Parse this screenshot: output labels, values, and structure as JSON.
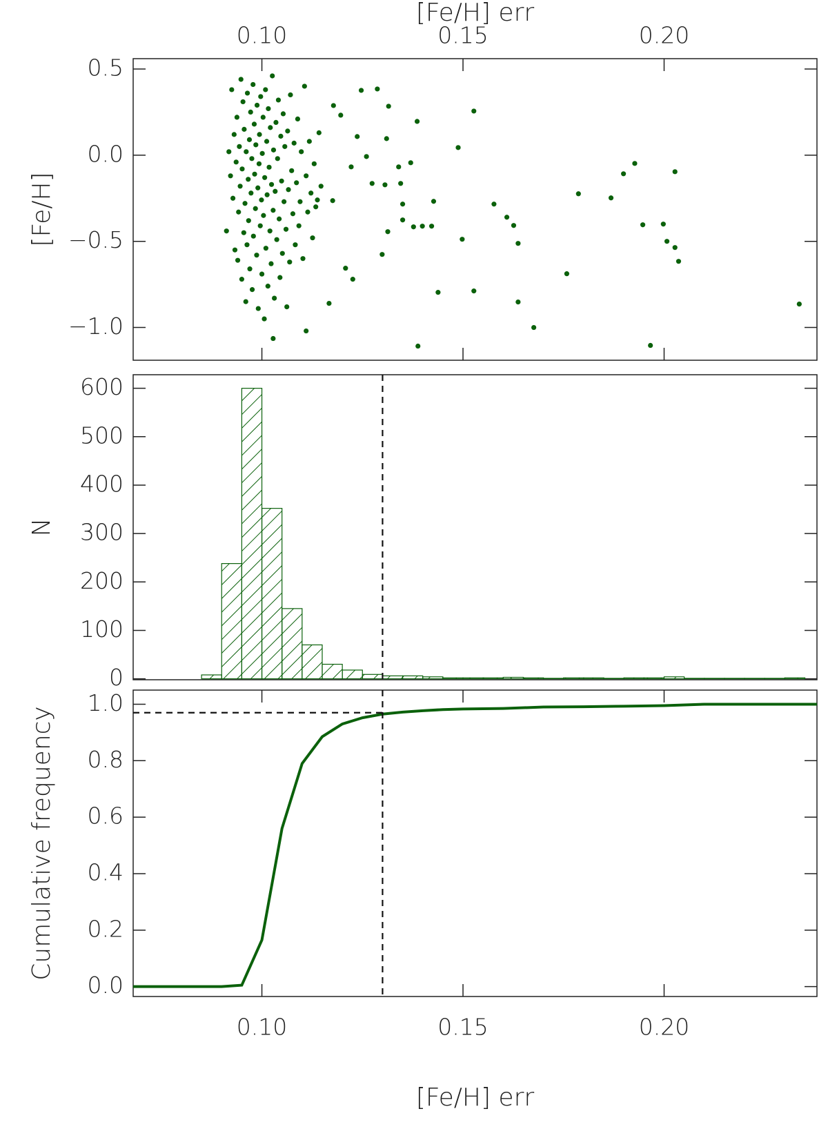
{
  "chart_data": [
    {
      "type": "scatter",
      "xlabel": "[Fe/H] err",
      "ylabel": "[Fe/H]",
      "xaxis": "top",
      "color": "#0b610b",
      "xlim": [
        0.068,
        0.238
      ],
      "xticks": [
        {
          "value": 0.1,
          "label": "0.10"
        },
        {
          "value": 0.15,
          "label": "0.15"
        },
        {
          "value": 0.2,
          "label": "0.20"
        }
      ],
      "ylim": [
        -1.19,
        0.56
      ],
      "yticks": [
        {
          "value": 0.5,
          "label": "0.5"
        },
        {
          "value": 0,
          "label": "0.0"
        },
        {
          "value": -0.5,
          "label": "−0.5"
        },
        {
          "value": -1,
          "label": "−1.0"
        }
      ],
      "x": [
        0.0912,
        0.0918,
        0.0922,
        0.0925,
        0.0928,
        0.0931,
        0.0933,
        0.0936,
        0.0938,
        0.094,
        0.0942,
        0.0944,
        0.0946,
        0.0948,
        0.095,
        0.0951,
        0.0953,
        0.0955,
        0.0956,
        0.0958,
        0.096,
        0.0961,
        0.0963,
        0.0964,
        0.0966,
        0.0967,
        0.0969,
        0.097,
        0.0972,
        0.0973,
        0.0975,
        0.0976,
        0.0978,
        0.0979,
        0.0981,
        0.0982,
        0.0984,
        0.0985,
        0.0987,
        0.0988,
        0.099,
        0.0991,
        0.0993,
        0.0994,
        0.0996,
        0.0997,
        0.0999,
        0.1,
        0.1001,
        0.1003,
        0.1004,
        0.1006,
        0.1007,
        0.1009,
        0.101,
        0.1012,
        0.1013,
        0.1015,
        0.1016,
        0.1018,
        0.102,
        0.1021,
        0.1023,
        0.1024,
        0.1026,
        0.1028,
        0.1029,
        0.1031,
        0.1033,
        0.1035,
        0.1037,
        0.1039,
        0.1041,
        0.1043,
        0.1045,
        0.1047,
        0.1049,
        0.1051,
        0.1053,
        0.1055,
        0.1057,
        0.106,
        0.1062,
        0.1064,
        0.1066,
        0.1069,
        0.1071,
        0.1074,
        0.1077,
        0.108,
        0.1083,
        0.1086,
        0.1089,
        0.1092,
        0.1095,
        0.1098,
        0.1102,
        0.1106,
        0.111,
        0.1114,
        0.1118,
        0.1122,
        0.1126,
        0.113,
        0.1134,
        0.1138,
        0.1142,
        0.1147,
        0.1247,
        0.1287,
        0.1315,
        0.1386,
        0.1527,
        0.1488,
        0.1237,
        0.131,
        0.126,
        0.1274,
        0.1306,
        0.134,
        0.137,
        0.1345,
        0.135,
        0.1313,
        0.135,
        0.1377,
        0.1399,
        0.1422,
        0.1427,
        0.1299,
        0.1498,
        0.1577,
        0.1609,
        0.1626,
        0.1637,
        0.1438,
        0.1527,
        0.1637,
        0.1388,
        0.1676,
        0.1758,
        0.1787,
        0.1868,
        0.1899,
        0.1927,
        0.1947,
        0.1998,
        0.2027,
        0.2007,
        0.2027,
        0.2036,
        0.1966,
        0.2336,
        0.1167,
        0.111,
        0.1028,
        0.1208,
        0.1226,
        0.1178,
        0.1196,
        0.1222,
        0.1176
      ],
      "y": [
        -0.44,
        0.02,
        -0.12,
        0.38,
        -0.25,
        0.12,
        -0.55,
        -0.04,
        0.22,
        -0.61,
        -0.33,
        0.05,
        -0.18,
        0.44,
        -0.72,
        -0.08,
        0.31,
        -0.45,
        0.15,
        -0.28,
        -0.85,
        0.02,
        -0.52,
        0.36,
        -0.14,
        -0.38,
        0.09,
        -0.66,
        0.25,
        -0.22,
        -0.02,
        -0.78,
        0.41,
        -0.47,
        0.18,
        -0.11,
        -0.31,
        0.06,
        -0.58,
        0.29,
        -0.19,
        -0.89,
        -0.05,
        0.12,
        -0.41,
        0.34,
        -0.26,
        -0.69,
        0.01,
        0.22,
        -0.35,
        -0.95,
        -0.13,
        0.38,
        -0.54,
        0.08,
        -0.23,
        -0.76,
        0.27,
        -0.07,
        -0.44,
        0.16,
        -0.63,
        -0.17,
        0.46,
        -0.32,
        0.03,
        -0.83,
        -0.21,
        0.19,
        -0.49,
        -0.02,
        0.32,
        -0.37,
        -0.71,
        0.11,
        -0.15,
        -0.57,
        0.24,
        -0.27,
        0.05,
        -0.43,
        -0.88,
        0.14,
        -0.2,
        -0.62,
        0.35,
        -0.09,
        -0.34,
        0.07,
        -0.52,
        -0.16,
        0.21,
        -0.41,
        -0.27,
        0.02,
        -0.6,
        0.4,
        -0.12,
        -0.33,
        0.08,
        -0.22,
        -0.48,
        -0.05,
        -0.3,
        -0.26,
        0.13,
        -0.18,
        0.376,
        0.384,
        0.284,
        0.196,
        0.256,
        0.044,
        0.108,
        0.096,
        -0.008,
        -0.164,
        -0.172,
        -0.068,
        -0.044,
        -0.164,
        -0.284,
        -0.444,
        -0.376,
        -0.416,
        -0.412,
        -0.412,
        -0.268,
        -0.576,
        -0.488,
        -0.284,
        -0.36,
        -0.408,
        -0.512,
        -0.796,
        -0.788,
        -0.852,
        -1.108,
        -1.0,
        -0.688,
        -0.224,
        -0.248,
        -0.108,
        -0.048,
        -0.404,
        -0.4,
        -0.096,
        -0.5,
        -0.536,
        -0.616,
        -1.104,
        -0.864,
        -0.86,
        -1.02,
        -1.064,
        -0.656,
        -0.72,
        0.288,
        0.232,
        -0.068,
        -0.264
      ]
    },
    {
      "type": "histogram",
      "ylabel": "N",
      "color": "#0b610b",
      "xlim": [
        0.068,
        0.238
      ],
      "vline": 0.13,
      "ylim": [
        -2,
        628
      ],
      "yticks": [
        0,
        100,
        200,
        300,
        400,
        500,
        600
      ],
      "bins": [
        0.07,
        0.075,
        0.08,
        0.085,
        0.09,
        0.095,
        0.1,
        0.105,
        0.11,
        0.115,
        0.12,
        0.125,
        0.13,
        0.135,
        0.14,
        0.145,
        0.15,
        0.155,
        0.16,
        0.165,
        0.17,
        0.175,
        0.18,
        0.185,
        0.19,
        0.195,
        0.2,
        0.205,
        0.21,
        0.215,
        0.22,
        0.225,
        0.23,
        0.235
      ],
      "counts": [
        0,
        0,
        0,
        8,
        238,
        600,
        352,
        145,
        70,
        30,
        18,
        9,
        6,
        6,
        4,
        2,
        2,
        2,
        3,
        2,
        1,
        2,
        2,
        1,
        2,
        2,
        4,
        1,
        1,
        1,
        1,
        1,
        2
      ]
    },
    {
      "type": "line",
      "xlabel": "[Fe/H] err",
      "ylabel": "Cumulative frequency",
      "xaxis": "bottom",
      "color": "#0b610b",
      "vline": 0.13,
      "hline": 0.97,
      "xlim": [
        0.068,
        0.238
      ],
      "xticks": [
        {
          "value": 0.1,
          "label": "0.10"
        },
        {
          "value": 0.15,
          "label": "0.15"
        },
        {
          "value": 0.2,
          "label": "0.20"
        }
      ],
      "ylim": [
        -0.035,
        1.05
      ],
      "yticks": [
        {
          "value": 0,
          "label": "0.0"
        },
        {
          "value": 0.2,
          "label": "0.2"
        },
        {
          "value": 0.4,
          "label": "0.4"
        },
        {
          "value": 0.6,
          "label": "0.6"
        },
        {
          "value": 0.8,
          "label": "0.8"
        },
        {
          "value": 1,
          "label": "1.0"
        }
      ],
      "x": [
        0.068,
        0.09,
        0.095,
        0.1,
        0.105,
        0.11,
        0.115,
        0.12,
        0.125,
        0.13,
        0.135,
        0.14,
        0.145,
        0.15,
        0.16,
        0.17,
        0.18,
        0.19,
        0.2,
        0.21,
        0.238
      ],
      "y": [
        0,
        0,
        0.005,
        0.165,
        0.56,
        0.79,
        0.885,
        0.93,
        0.952,
        0.965,
        0.972,
        0.977,
        0.981,
        0.983,
        0.985,
        0.99,
        0.991,
        0.993,
        0.995,
        1.0,
        1.0
      ]
    }
  ]
}
